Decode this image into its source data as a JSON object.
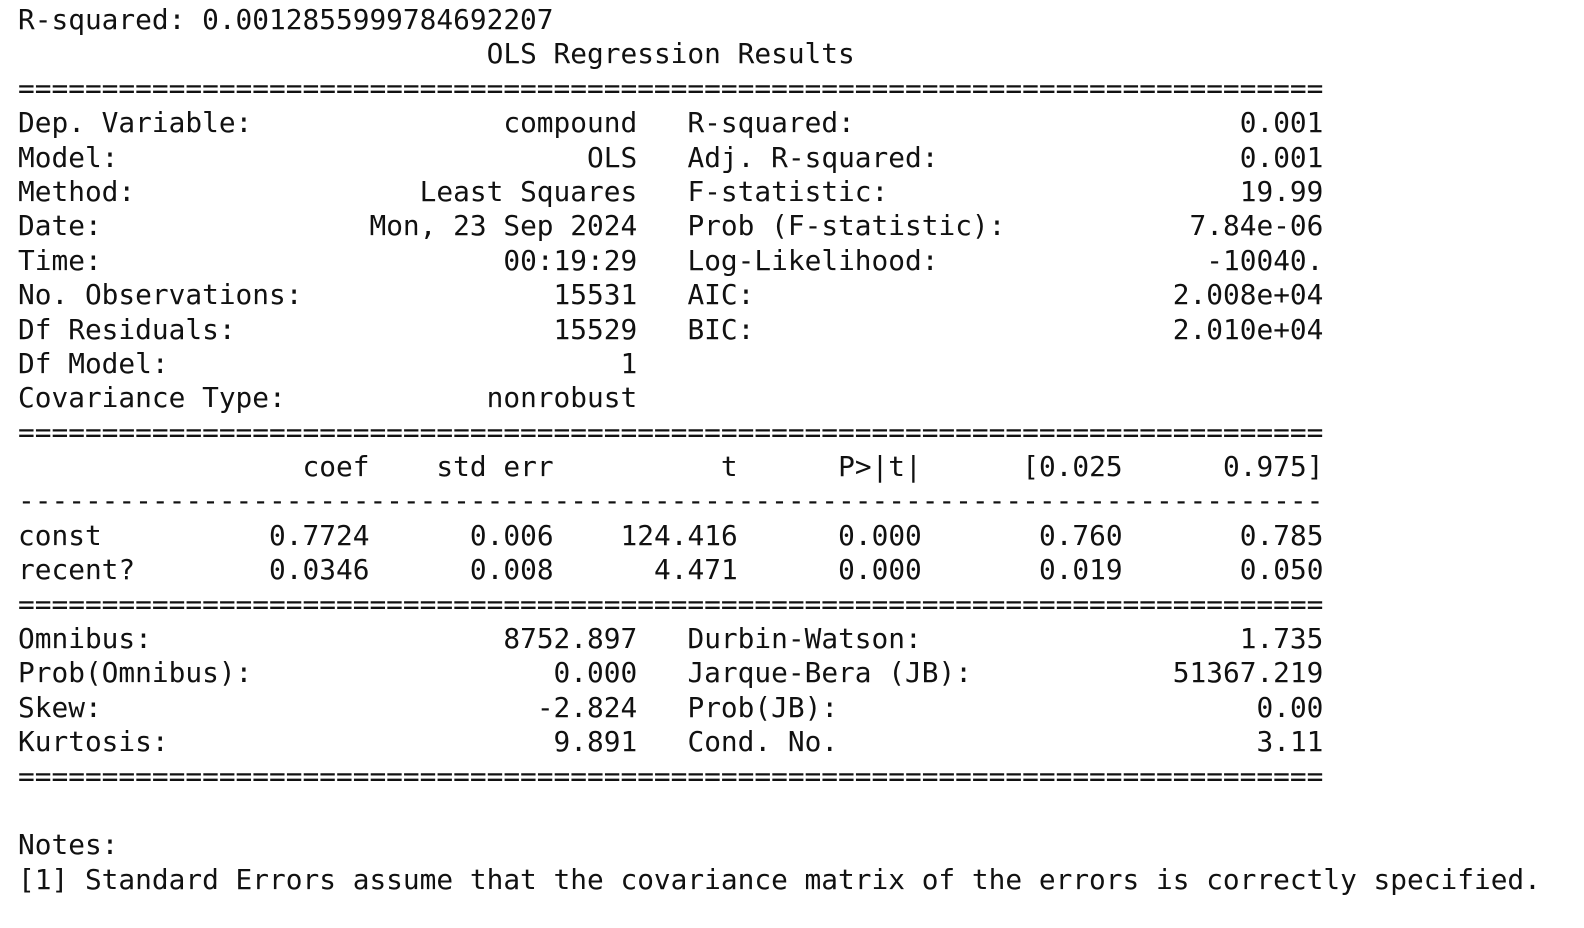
{
  "output": {
    "r_squared_line": "R-squared: 0.0012855999784692207",
    "title": "OLS Regression Results",
    "separator_double": "==============================================================================",
    "separator_single": "------------------------------------------------------------------------------",
    "summary_rows": [
      {
        "label": "Dep. Variable:",
        "value": "compound",
        "label2": "R-squared:",
        "value2": "0.001"
      },
      {
        "label": "Model:",
        "value": "OLS",
        "label2": "Adj. R-squared:",
        "value2": "0.001"
      },
      {
        "label": "Method:",
        "value": "Least Squares",
        "label2": "F-statistic:",
        "value2": "19.99"
      },
      {
        "label": "Date:",
        "value": "Mon, 23 Sep 2024",
        "label2": "Prob (F-statistic):",
        "value2": "7.84e-06"
      },
      {
        "label": "Time:",
        "value": "00:19:29",
        "label2": "Log-Likelihood:",
        "value2": "-10040."
      },
      {
        "label": "No. Observations:",
        "value": "15531",
        "label2": "AIC:",
        "value2": "2.008e+04"
      },
      {
        "label": "Df Residuals:",
        "value": "15529",
        "label2": "BIC:",
        "value2": "2.010e+04"
      },
      {
        "label": "Df Model:",
        "value": "1",
        "label2": "",
        "value2": ""
      },
      {
        "label": "Covariance Type:",
        "value": "nonrobust",
        "label2": "",
        "value2": ""
      }
    ],
    "coef_headers": [
      "coef",
      "std err",
      "t",
      "P>|t|",
      "[0.025",
      "0.975]"
    ],
    "coef_rows": [
      {
        "name": "const",
        "values": [
          "0.7724",
          "0.006",
          "124.416",
          "0.000",
          "0.760",
          "0.785"
        ]
      },
      {
        "name": "recent?",
        "values": [
          "0.0346",
          "0.008",
          "4.471",
          "0.000",
          "0.019",
          "0.050"
        ]
      }
    ],
    "diagnostic_rows": [
      {
        "label": "Omnibus:",
        "value": "8752.897",
        "label2": "Durbin-Watson:",
        "value2": "1.735"
      },
      {
        "label": "Prob(Omnibus):",
        "value": "0.000",
        "label2": "Jarque-Bera (JB):",
        "value2": "51367.219"
      },
      {
        "label": "Skew:",
        "value": "-2.824",
        "label2": "Prob(JB):",
        "value2": "0.00"
      },
      {
        "label": "Kurtosis:",
        "value": "9.891",
        "label2": "Cond. No.",
        "value2": "3.11"
      }
    ],
    "notes_title": "Notes:",
    "notes": [
      "[1] Standard Errors assume that the covariance matrix of the errors is correctly specified."
    ]
  }
}
